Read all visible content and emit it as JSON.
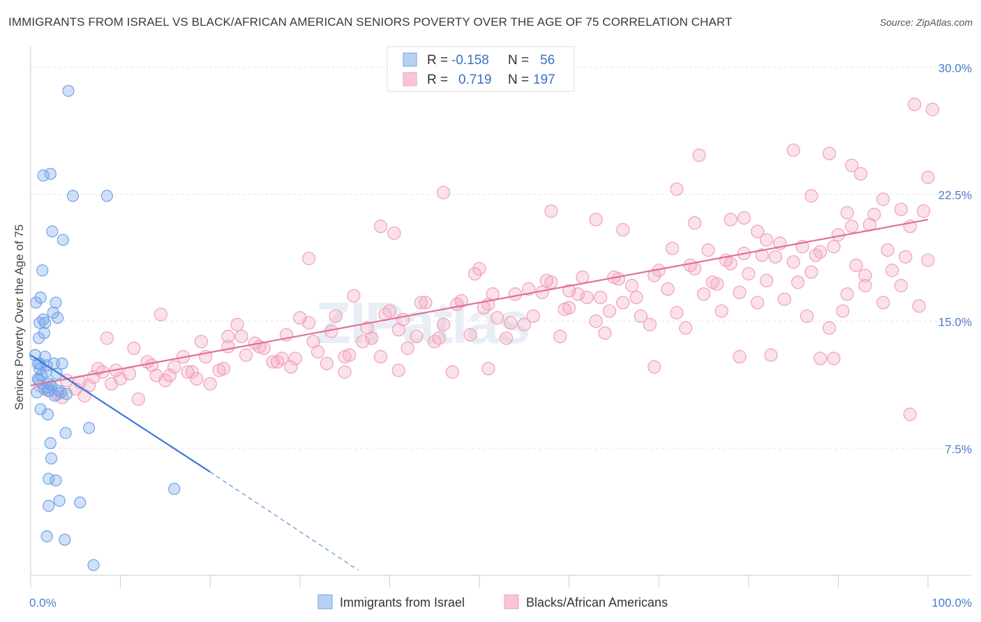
{
  "title": "IMMIGRANTS FROM ISRAEL VS BLACK/AFRICAN AMERICAN SENIORS POVERTY OVER THE AGE OF 75 CORRELATION CHART",
  "source": "Source: ZipAtlas.com",
  "watermark": "ZIPatlas",
  "colors": {
    "blue": "#6fa3e8",
    "blue_line": "#3a78d6",
    "pink": "#f0a0b8",
    "pink_line": "#e0709a",
    "tick": "#4a7cc9"
  },
  "legend": {
    "rows": [
      {
        "r_label": "R =",
        "r_value": "-0.158",
        "n_label": "N =",
        "n_value": "56"
      },
      {
        "r_label": "R =",
        "r_value": "0.719",
        "n_label": "N =",
        "n_value": "197"
      }
    ]
  },
  "bottom_legend": [
    "Immigrants from Israel",
    "Blacks/African Americans"
  ],
  "chart_data": {
    "type": "scatter",
    "title": "IMMIGRANTS FROM ISRAEL VS BLACK/AFRICAN AMERICAN SENIORS POVERTY OVER THE AGE OF 75 CORRELATION CHART",
    "xlabel": "",
    "ylabel": "Seniors Poverty Over the Age of 75",
    "xlim": [
      0,
      100
    ],
    "ylim": [
      0,
      31
    ],
    "x_tick_labels": [
      "0.0%",
      "100.0%"
    ],
    "y_ticks": [
      7.5,
      15.0,
      22.5,
      30.0
    ],
    "y_tick_labels": [
      "7.5%",
      "15.0%",
      "22.5%",
      "30.0%"
    ],
    "grid": true,
    "legend_position": "top-center",
    "series": [
      {
        "name": "Immigrants from Israel",
        "color": "#6fa3e8",
        "trend": {
          "x": [
            0,
            20
          ],
          "y": [
            13.0,
            6.1
          ],
          "dashed_to": [
            36.5,
            0.3
          ]
        },
        "points": [
          [
            0.5,
            13.0
          ],
          [
            0.8,
            12.5
          ],
          [
            1.0,
            12.2
          ],
          [
            1.2,
            11.8
          ],
          [
            0.9,
            11.5
          ],
          [
            1.5,
            11.0
          ],
          [
            0.7,
            10.8
          ],
          [
            2.0,
            10.9
          ],
          [
            2.3,
            11.2
          ],
          [
            0.6,
            16.1
          ],
          [
            1.1,
            16.4
          ],
          [
            2.8,
            16.1
          ],
          [
            1.4,
            15.1
          ],
          [
            1.0,
            14.9
          ],
          [
            1.6,
            14.9
          ],
          [
            3.0,
            15.2
          ],
          [
            1.5,
            14.3
          ],
          [
            2.5,
            15.5
          ],
          [
            1.3,
            18.0
          ],
          [
            2.4,
            20.3
          ],
          [
            3.6,
            19.8
          ],
          [
            1.4,
            23.6
          ],
          [
            2.2,
            23.7
          ],
          [
            4.7,
            22.4
          ],
          [
            8.5,
            22.4
          ],
          [
            4.2,
            28.6
          ],
          [
            1.0,
            12.5
          ],
          [
            1.8,
            12.4
          ],
          [
            2.6,
            12.5
          ],
          [
            3.5,
            12.5
          ],
          [
            1.7,
            12.0
          ],
          [
            2.9,
            11.9
          ],
          [
            0.8,
            11.6
          ],
          [
            1.9,
            11.1
          ],
          [
            2.7,
            10.6
          ],
          [
            3.4,
            10.8
          ],
          [
            1.1,
            9.8
          ],
          [
            1.9,
            9.5
          ],
          [
            3.9,
            8.4
          ],
          [
            6.5,
            8.7
          ],
          [
            2.2,
            7.8
          ],
          [
            2.3,
            6.9
          ],
          [
            2.0,
            5.7
          ],
          [
            2.8,
            5.6
          ],
          [
            3.2,
            4.4
          ],
          [
            5.5,
            4.3
          ],
          [
            2.0,
            4.1
          ],
          [
            16.0,
            5.1
          ],
          [
            1.8,
            2.3
          ],
          [
            3.8,
            2.1
          ],
          [
            7.0,
            0.6
          ],
          [
            1.6,
            12.9
          ],
          [
            2.1,
            11.3
          ],
          [
            3.1,
            10.9
          ],
          [
            0.9,
            14.0
          ],
          [
            4.0,
            10.7
          ]
        ]
      },
      {
        "name": "Blacks/African Americans",
        "color": "#f0a0b8",
        "trend": {
          "x": [
            0,
            100
          ],
          "y": [
            11.2,
            21.0
          ]
        },
        "points": [
          [
            1.0,
            11.2
          ],
          [
            2.0,
            10.9
          ],
          [
            3.0,
            10.7
          ],
          [
            4.0,
            11.5
          ],
          [
            5.0,
            11.0
          ],
          [
            6.0,
            10.6
          ],
          [
            7.0,
            11.7
          ],
          [
            8.0,
            12.0
          ],
          [
            9.0,
            11.3
          ],
          [
            10.0,
            11.6
          ],
          [
            11.0,
            11.9
          ],
          [
            12.0,
            10.4
          ],
          [
            13.0,
            12.6
          ],
          [
            14.0,
            11.8
          ],
          [
            15.0,
            11.5
          ],
          [
            16.0,
            12.3
          ],
          [
            17.0,
            12.9
          ],
          [
            18.0,
            12.0
          ],
          [
            19.0,
            13.8
          ],
          [
            20.0,
            11.3
          ],
          [
            21.0,
            12.1
          ],
          [
            22.0,
            13.5
          ],
          [
            23.0,
            14.8
          ],
          [
            24.0,
            13.0
          ],
          [
            25.0,
            13.7
          ],
          [
            26.0,
            13.4
          ],
          [
            27.0,
            12.6
          ],
          [
            28.0,
            12.8
          ],
          [
            29.0,
            12.3
          ],
          [
            30.0,
            15.2
          ],
          [
            31.0,
            14.9
          ],
          [
            32.0,
            13.2
          ],
          [
            33.0,
            12.5
          ],
          [
            34.0,
            15.3
          ],
          [
            35.0,
            12.9
          ],
          [
            36.0,
            16.5
          ],
          [
            37.0,
            13.8
          ],
          [
            38.0,
            14.0
          ],
          [
            39.0,
            12.9
          ],
          [
            40.0,
            15.6
          ],
          [
            41.0,
            14.5
          ],
          [
            42.0,
            13.4
          ],
          [
            43.0,
            14.1
          ],
          [
            44.0,
            16.1
          ],
          [
            45.0,
            13.8
          ],
          [
            46.0,
            14.8
          ],
          [
            47.0,
            12.0
          ],
          [
            48.0,
            16.2
          ],
          [
            49.0,
            14.2
          ],
          [
            50.0,
            18.1
          ],
          [
            51.0,
            16.0
          ],
          [
            52.0,
            15.2
          ],
          [
            53.0,
            14.0
          ],
          [
            54.0,
            16.6
          ],
          [
            55.0,
            14.8
          ],
          [
            56.0,
            15.3
          ],
          [
            57.0,
            16.7
          ],
          [
            58.0,
            17.3
          ],
          [
            59.0,
            14.1
          ],
          [
            60.0,
            15.8
          ],
          [
            61.0,
            16.6
          ],
          [
            62.0,
            16.4
          ],
          [
            63.0,
            15.0
          ],
          [
            64.0,
            14.3
          ],
          [
            65.0,
            17.6
          ],
          [
            66.0,
            16.1
          ],
          [
            67.0,
            17.1
          ],
          [
            68.0,
            15.3
          ],
          [
            69.0,
            14.8
          ],
          [
            70.0,
            18.0
          ],
          [
            71.0,
            16.9
          ],
          [
            72.0,
            15.5
          ],
          [
            73.0,
            14.6
          ],
          [
            74.0,
            18.1
          ],
          [
            75.0,
            16.6
          ],
          [
            76.0,
            17.3
          ],
          [
            77.0,
            15.6
          ],
          [
            78.0,
            18.4
          ],
          [
            79.0,
            16.7
          ],
          [
            80.0,
            17.8
          ],
          [
            81.0,
            16.1
          ],
          [
            82.0,
            17.4
          ],
          [
            83.0,
            18.8
          ],
          [
            84.0,
            16.3
          ],
          [
            85.0,
            18.5
          ],
          [
            86.0,
            19.4
          ],
          [
            87.0,
            17.9
          ],
          [
            88.0,
            19.1
          ],
          [
            89.0,
            14.6
          ],
          [
            90.0,
            20.1
          ],
          [
            91.0,
            16.6
          ],
          [
            92.0,
            18.3
          ],
          [
            93.0,
            17.7
          ],
          [
            94.0,
            21.3
          ],
          [
            95.0,
            16.1
          ],
          [
            96.0,
            18.0
          ],
          [
            97.0,
            17.1
          ],
          [
            98.0,
            20.6
          ],
          [
            99.0,
            15.9
          ],
          [
            100.0,
            18.6
          ],
          [
            3.5,
            10.5
          ],
          [
            5.5,
            11.4
          ],
          [
            7.5,
            12.2
          ],
          [
            9.5,
            12.1
          ],
          [
            11.5,
            13.4
          ],
          [
            13.5,
            12.4
          ],
          [
            15.5,
            11.8
          ],
          [
            17.5,
            12.0
          ],
          [
            19.5,
            12.9
          ],
          [
            21.5,
            12.2
          ],
          [
            23.5,
            14.1
          ],
          [
            25.5,
            13.5
          ],
          [
            27.5,
            12.6
          ],
          [
            29.5,
            12.8
          ],
          [
            31.5,
            13.8
          ],
          [
            33.5,
            14.4
          ],
          [
            35.5,
            13.0
          ],
          [
            37.5,
            14.6
          ],
          [
            39.5,
            15.4
          ],
          [
            41.5,
            15.1
          ],
          [
            43.5,
            16.1
          ],
          [
            45.5,
            14.0
          ],
          [
            47.5,
            16.0
          ],
          [
            49.5,
            17.8
          ],
          [
            51.5,
            16.6
          ],
          [
            53.5,
            14.9
          ],
          [
            55.5,
            16.9
          ],
          [
            57.5,
            17.4
          ],
          [
            59.5,
            15.7
          ],
          [
            61.5,
            17.6
          ],
          [
            63.5,
            16.4
          ],
          [
            65.5,
            17.5
          ],
          [
            67.5,
            16.4
          ],
          [
            69.5,
            17.7
          ],
          [
            71.5,
            19.3
          ],
          [
            73.5,
            18.3
          ],
          [
            75.5,
            19.2
          ],
          [
            77.5,
            18.6
          ],
          [
            79.5,
            19.0
          ],
          [
            81.5,
            18.9
          ],
          [
            83.5,
            19.6
          ],
          [
            85.5,
            17.3
          ],
          [
            87.5,
            18.9
          ],
          [
            89.5,
            19.4
          ],
          [
            91.5,
            20.6
          ],
          [
            93.5,
            20.7
          ],
          [
            95.5,
            19.2
          ],
          [
            97.5,
            18.8
          ],
          [
            46.0,
            22.6
          ],
          [
            58.0,
            21.5
          ],
          [
            63.0,
            21.0
          ],
          [
            66.0,
            20.4
          ],
          [
            72.0,
            22.8
          ],
          [
            74.0,
            20.8
          ],
          [
            74.5,
            24.8
          ],
          [
            78.0,
            21.0
          ],
          [
            79.5,
            21.1
          ],
          [
            81.0,
            20.3
          ],
          [
            82.0,
            19.8
          ],
          [
            85.0,
            25.1
          ],
          [
            87.0,
            22.4
          ],
          [
            89.0,
            24.9
          ],
          [
            91.0,
            21.4
          ],
          [
            91.5,
            24.2
          ],
          [
            92.5,
            23.7
          ],
          [
            95.0,
            22.2
          ],
          [
            97.0,
            21.6
          ],
          [
            99.5,
            21.5
          ],
          [
            100.0,
            23.5
          ],
          [
            98.5,
            27.8
          ],
          [
            100.5,
            27.5
          ],
          [
            98.0,
            9.5
          ],
          [
            79.0,
            12.9
          ],
          [
            82.5,
            13.0
          ],
          [
            88.0,
            12.8
          ],
          [
            89.5,
            12.8
          ],
          [
            69.5,
            12.3
          ],
          [
            51.0,
            12.2
          ],
          [
            41.0,
            12.1
          ],
          [
            35.0,
            12.0
          ],
          [
            31.0,
            18.7
          ],
          [
            40.5,
            20.2
          ],
          [
            39.0,
            20.6
          ],
          [
            22.0,
            14.1
          ],
          [
            8.5,
            14.0
          ],
          [
            14.5,
            15.4
          ],
          [
            6.5,
            11.2
          ],
          [
            28.5,
            14.2
          ],
          [
            18.5,
            11.6
          ],
          [
            50.5,
            15.8
          ],
          [
            60.0,
            16.8
          ],
          [
            64.5,
            15.6
          ],
          [
            76.5,
            17.2
          ],
          [
            86.5,
            15.3
          ],
          [
            90.5,
            15.6
          ],
          [
            93.0,
            17.1
          ]
        ]
      }
    ]
  },
  "axes": {
    "ylabel": "Seniors Poverty Over the Age of 75",
    "x_min_label": "0.0%",
    "x_max_label": "100.0%"
  }
}
